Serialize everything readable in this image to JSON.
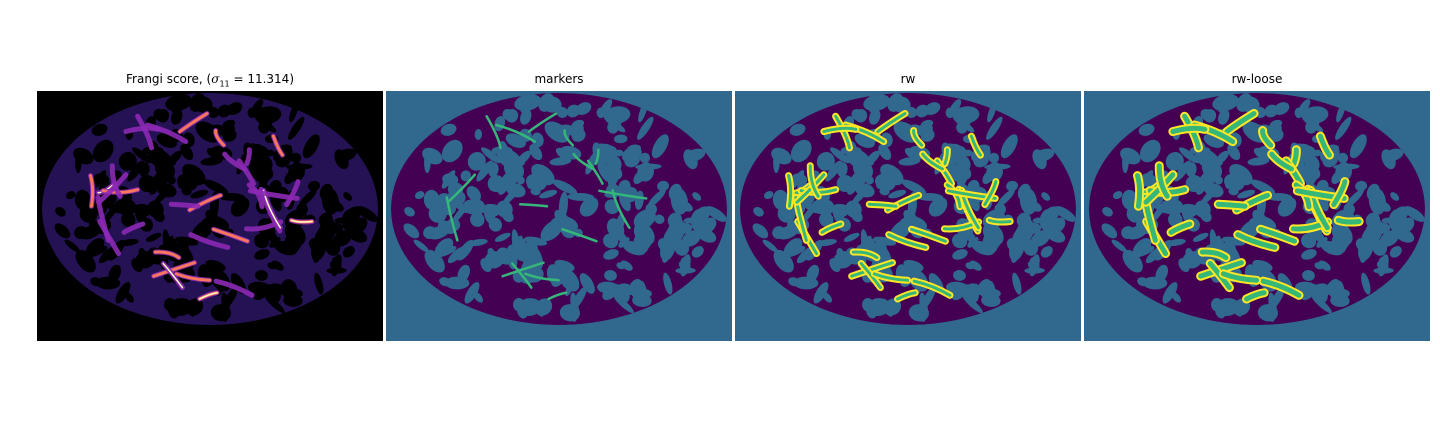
{
  "panels": [
    {
      "title_prefix": "Frangi score, (",
      "title_math": "σ",
      "title_sub": "11",
      "title_suffix": " = 11.314)",
      "colormap": "magma"
    },
    {
      "title": "markers",
      "colormap": "viridis"
    },
    {
      "title": "rw",
      "colormap": "viridis"
    },
    {
      "title": "rw-loose",
      "colormap": "viridis"
    }
  ],
  "colors": {
    "background_field": "#31688e",
    "tissue": "#440154",
    "marker": "#35b779",
    "vessel_edge": "#fde725",
    "frangi_background": "#000000",
    "frangi_tissue": "#251255",
    "frangi_mid": "#8c29b5",
    "frangi_high": "#f8765c",
    "frangi_peak": "#fcfdbf"
  }
}
